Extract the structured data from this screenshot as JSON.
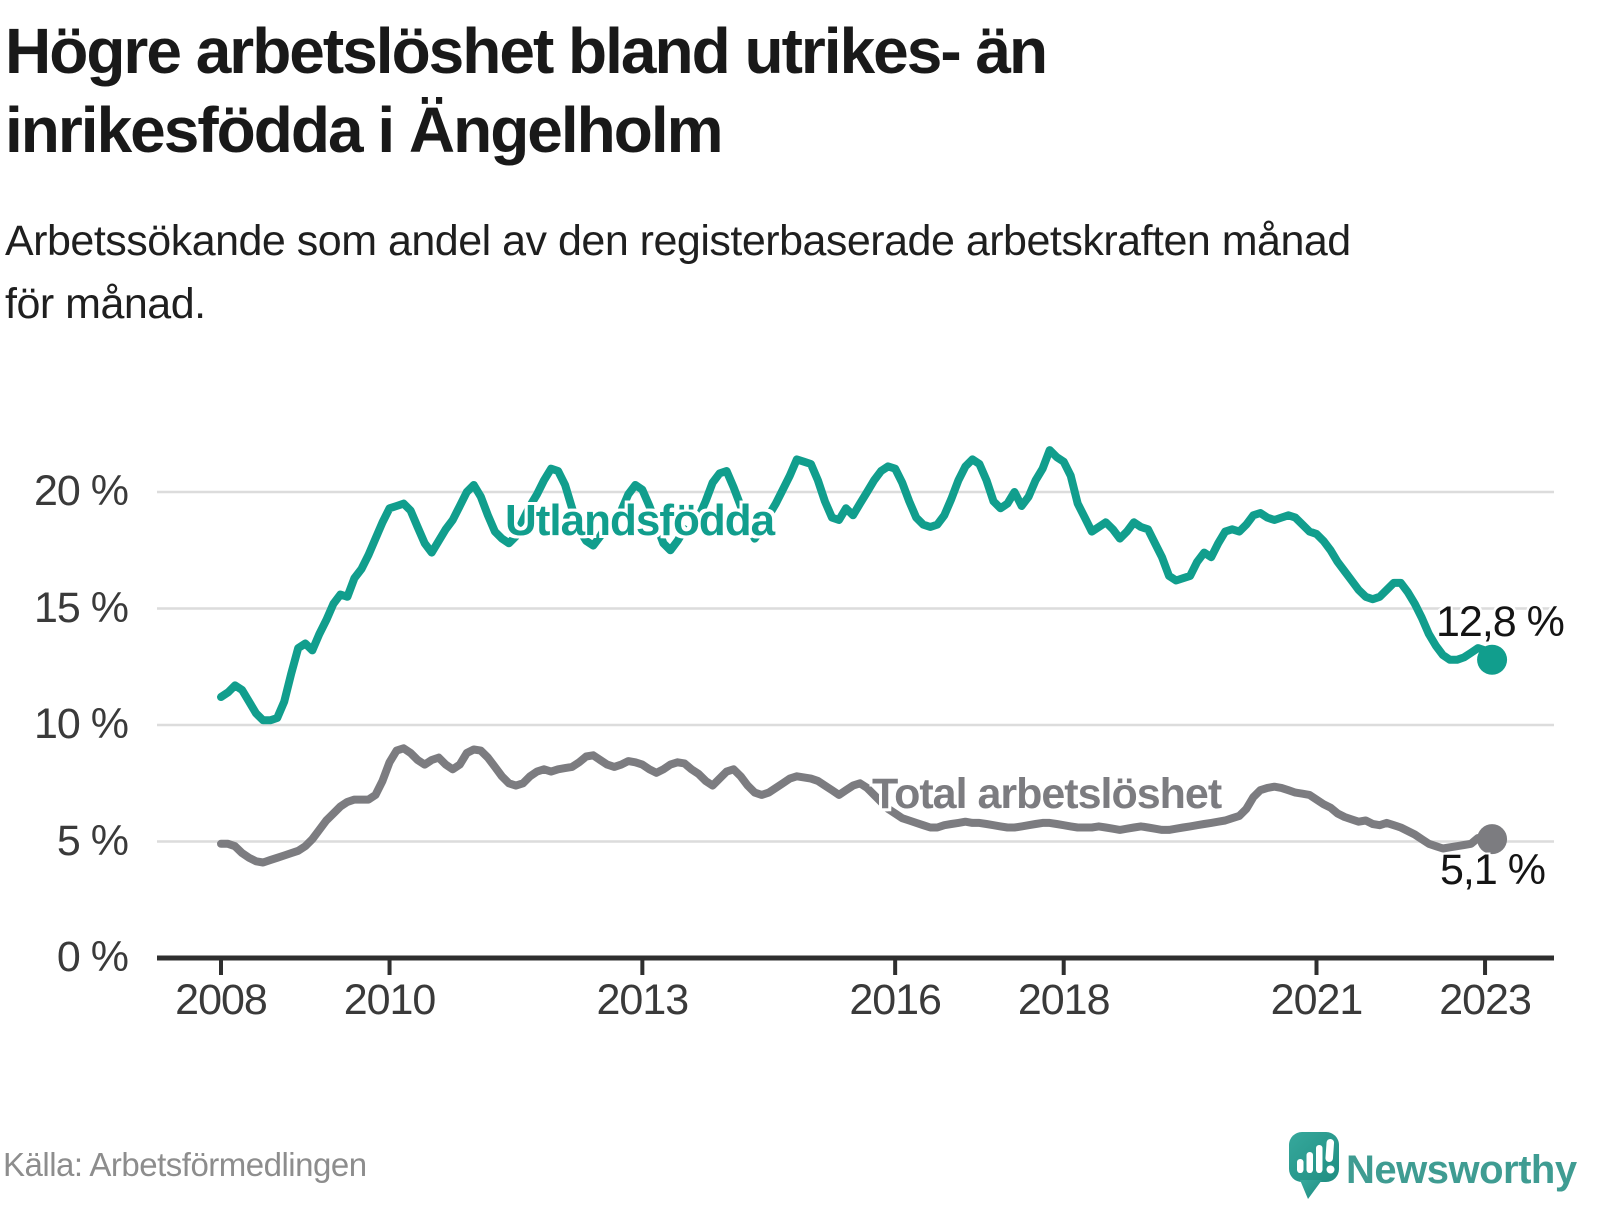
{
  "header": {
    "title_line1": "Högre arbetslöshet bland utrikes- än",
    "title_line2": "inrikesfödda i Ängelholm",
    "subtitle_line1": "Arbetssökande som andel av den registerbaserade arbetskraften månad",
    "subtitle_line2": "för månad."
  },
  "footer": {
    "source": "Källa: Arbetsförmedlingen",
    "logo_text": "Newsworthy"
  },
  "colors": {
    "series_utlandsfodda": "#119e8d",
    "series_total": "#7c7c80",
    "grid": "#dcdcdc",
    "axis": "#2f2f2f",
    "tick_text": "#3a3a3a",
    "title_text": "#191919",
    "source_text": "#8d8d8d",
    "logo_teal": "#3f9c92",
    "logo_icon_top": "#36a89c",
    "logo_icon_bottom": "#1f8d81"
  },
  "chart_data": {
    "type": "line",
    "title": "Högre arbetslöshet bland utrikes- än inrikesfödda i Ängelholm",
    "subtitle": "Arbetssökande som andel av den registerbaserade arbetskraften månad för månad.",
    "sampling": "monthly",
    "start": {
      "year": 2008,
      "month": 1
    },
    "x_axis": {
      "tick_years": [
        2008,
        2010,
        2013,
        2016,
        2018,
        2021,
        2023
      ],
      "tick_labels": [
        "2008",
        "2010",
        "2013",
        "2016",
        "2018",
        "2021",
        "2023"
      ],
      "range": [
        2007.25,
        2023.8
      ]
    },
    "y_axis": {
      "tick_values": [
        0,
        5,
        10,
        15,
        20
      ],
      "tick_labels": [
        "0 %",
        "5 %",
        "10 %",
        "15 %",
        "20 %"
      ],
      "range": [
        0,
        22.6
      ],
      "grid": true
    },
    "legend_position": "inline-labels",
    "series": [
      {
        "name": "Utlandsfödda",
        "color": "#119e8d",
        "end_label": "12,8 %",
        "last_value": 12.8,
        "values": [
          11.2,
          11.4,
          11.7,
          11.5,
          11.0,
          10.5,
          10.2,
          10.2,
          10.3,
          11.0,
          12.2,
          13.3,
          13.5,
          13.2,
          13.9,
          14.5,
          15.2,
          15.6,
          15.5,
          16.3,
          16.7,
          17.3,
          18.0,
          18.7,
          19.3,
          19.4,
          19.5,
          19.2,
          18.5,
          17.8,
          17.4,
          17.9,
          18.4,
          18.8,
          19.4,
          20.0,
          20.3,
          19.8,
          19.0,
          18.3,
          18.0,
          17.8,
          18.1,
          18.8,
          19.4,
          19.9,
          20.5,
          21.0,
          20.9,
          20.3,
          19.3,
          18.4,
          17.9,
          17.7,
          18.1,
          18.6,
          18.4,
          19.2,
          19.9,
          20.3,
          20.1,
          19.4,
          18.6,
          17.8,
          17.5,
          17.9,
          18.4,
          18.2,
          18.9,
          19.6,
          20.4,
          20.8,
          20.9,
          20.2,
          19.4,
          18.7,
          18.0,
          18.4,
          19.0,
          19.5,
          20.1,
          20.7,
          21.4,
          21.3,
          21.2,
          20.5,
          19.6,
          18.9,
          18.8,
          19.3,
          19.0,
          19.5,
          20.0,
          20.5,
          20.9,
          21.1,
          21.0,
          20.4,
          19.6,
          18.9,
          18.6,
          18.5,
          18.6,
          19.0,
          19.7,
          20.5,
          21.1,
          21.4,
          21.2,
          20.5,
          19.6,
          19.3,
          19.5,
          20.0,
          19.4,
          19.8,
          20.5,
          21.0,
          21.8,
          21.5,
          21.3,
          20.7,
          19.5,
          18.9,
          18.3,
          18.5,
          18.7,
          18.4,
          18.0,
          18.3,
          18.7,
          18.5,
          18.4,
          17.8,
          17.2,
          16.4,
          16.2,
          16.3,
          16.4,
          17.0,
          17.4,
          17.2,
          17.8,
          18.3,
          18.4,
          18.3,
          18.6,
          19.0,
          19.1,
          18.9,
          18.8,
          18.9,
          19.0,
          18.9,
          18.6,
          18.3,
          18.2,
          17.9,
          17.5,
          17.0,
          16.6,
          16.2,
          15.8,
          15.5,
          15.4,
          15.5,
          15.8,
          16.1,
          16.1,
          15.7,
          15.2,
          14.6,
          13.9,
          13.4,
          13.0,
          12.8,
          12.8,
          12.9,
          13.1,
          13.3,
          13.2,
          12.8
        ]
      },
      {
        "name": "Total arbetslöshet",
        "color": "#7c7c80",
        "end_label": "5,1 %",
        "last_value": 5.1,
        "values": [
          4.9,
          4.9,
          4.8,
          4.5,
          4.3,
          4.15,
          4.1,
          4.2,
          4.3,
          4.4,
          4.5,
          4.6,
          4.8,
          5.1,
          5.5,
          5.9,
          6.2,
          6.5,
          6.7,
          6.8,
          6.8,
          6.8,
          7.0,
          7.6,
          8.4,
          8.9,
          9.0,
          8.8,
          8.5,
          8.3,
          8.5,
          8.6,
          8.3,
          8.1,
          8.3,
          8.8,
          8.95,
          8.9,
          8.6,
          8.2,
          7.8,
          7.5,
          7.4,
          7.5,
          7.8,
          8.0,
          8.1,
          8.0,
          8.1,
          8.15,
          8.2,
          8.4,
          8.65,
          8.7,
          8.5,
          8.3,
          8.2,
          8.3,
          8.45,
          8.4,
          8.3,
          8.1,
          7.95,
          8.1,
          8.3,
          8.4,
          8.35,
          8.1,
          7.9,
          7.6,
          7.4,
          7.7,
          8.0,
          8.1,
          7.8,
          7.4,
          7.1,
          7.0,
          7.1,
          7.3,
          7.5,
          7.7,
          7.8,
          7.75,
          7.7,
          7.6,
          7.4,
          7.2,
          7.0,
          7.2,
          7.4,
          7.5,
          7.3,
          7.0,
          6.7,
          6.4,
          6.2,
          6.0,
          5.9,
          5.8,
          5.7,
          5.6,
          5.6,
          5.7,
          5.75,
          5.8,
          5.85,
          5.8,
          5.8,
          5.75,
          5.7,
          5.65,
          5.6,
          5.6,
          5.65,
          5.7,
          5.75,
          5.8,
          5.8,
          5.75,
          5.7,
          5.65,
          5.6,
          5.6,
          5.6,
          5.65,
          5.6,
          5.55,
          5.5,
          5.55,
          5.6,
          5.65,
          5.6,
          5.55,
          5.5,
          5.5,
          5.55,
          5.6,
          5.65,
          5.7,
          5.75,
          5.8,
          5.85,
          5.9,
          6.0,
          6.1,
          6.4,
          6.9,
          7.2,
          7.3,
          7.35,
          7.3,
          7.2,
          7.1,
          7.05,
          7.0,
          6.8,
          6.6,
          6.45,
          6.2,
          6.05,
          5.95,
          5.85,
          5.9,
          5.75,
          5.7,
          5.8,
          5.7,
          5.6,
          5.45,
          5.3,
          5.1,
          4.9,
          4.8,
          4.7,
          4.75,
          4.8,
          4.85,
          4.9,
          5.15,
          5.0,
          5.1
        ]
      }
    ]
  }
}
